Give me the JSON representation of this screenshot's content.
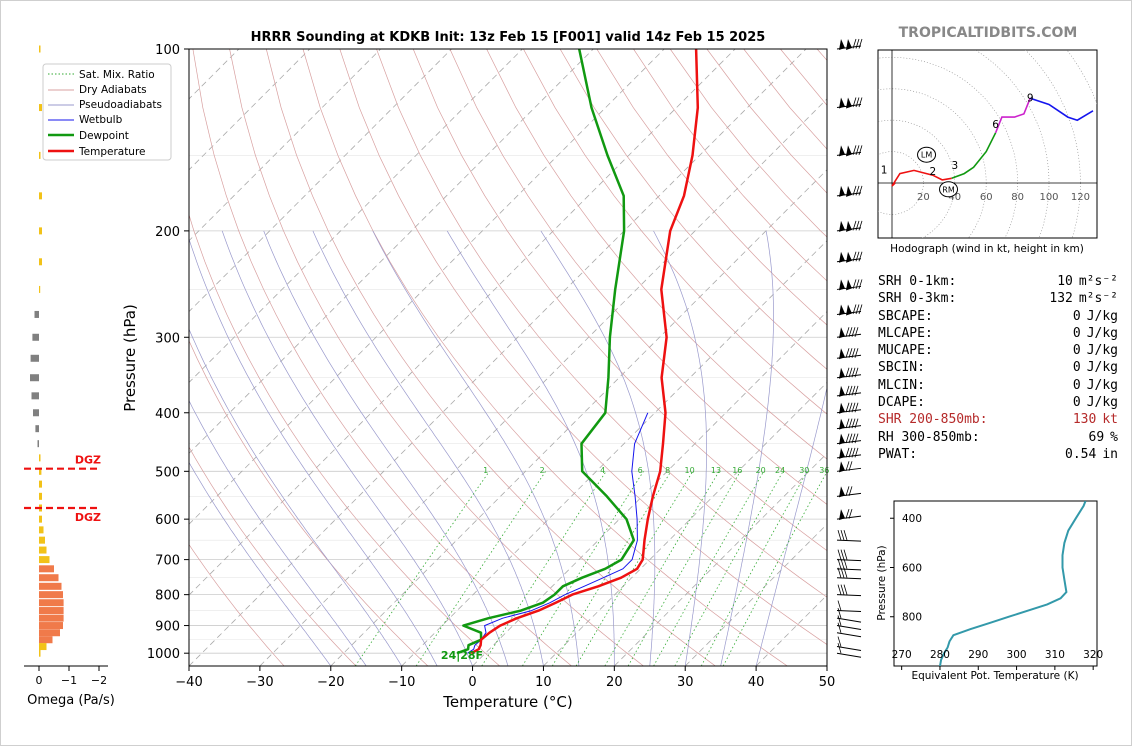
{
  "site": "TROPICALTIDBITS.COM",
  "title": "HRRR Sounding at KDKB Init: 13z Feb 15 [F001] valid 14z Feb 15 2025",
  "colors": {
    "temperature": "#ee1111",
    "dewpoint": "#119911",
    "wetbulb": "#1515ee",
    "dry_adiabat": "#d8a0a0",
    "moist_adiabat": "#9999cc",
    "mixing_ratio": "#33aa33",
    "hodo_0_3": "#ee1111",
    "hodo_3_6": "#119911",
    "hodo_6_9": "#cc22cc",
    "hodo_9_12": "#1515ee",
    "theta_e": "#3399aa",
    "omega_up": "#f2c218",
    "omega_low": "#f07a4a",
    "omega_down": "#808080",
    "dgz": "#ee1111",
    "site_text": "#888888"
  },
  "stats": [
    {
      "label": "SRH 0-1km:",
      "value": "10",
      "unit": "m²s⁻²"
    },
    {
      "label": "SRH 0-3km:",
      "value": "132",
      "unit": "m²s⁻²"
    },
    {
      "label": "SBCAPE:",
      "value": "0",
      "unit": "J/kg"
    },
    {
      "label": "MLCAPE:",
      "value": "0",
      "unit": "J/kg"
    },
    {
      "label": "MUCAPE:",
      "value": "0",
      "unit": "J/kg"
    },
    {
      "label": "SBCIN:",
      "value": "0",
      "unit": "J/kg"
    },
    {
      "label": "MLCIN:",
      "value": "0",
      "unit": "J/kg"
    },
    {
      "label": "DCAPE:",
      "value": "0",
      "unit": "J/kg"
    },
    {
      "label": "SHR 200-850mb:",
      "value": "130",
      "unit": "kt",
      "warn": true
    },
    {
      "label": "RH 300-850mb:",
      "value": "69",
      "unit": "%"
    },
    {
      "label": "PWAT:",
      "value": "0.54",
      "unit": "in"
    }
  ],
  "chart_data": [
    {
      "type": "line",
      "subtype": "skew-t",
      "title": "HRRR Sounding at KDKB Init: 13z Feb 15 [F001] valid 14z Feb 15 2025",
      "xlabel": "Temperature (°C)",
      "ylabel": "Pressure (hPa)",
      "xlim": [
        -40,
        50
      ],
      "ylim": [
        1050,
        100
      ],
      "y_scale": "log",
      "x_ticks": [
        -40,
        -30,
        -20,
        -10,
        0,
        10,
        20,
        30,
        40,
        50
      ],
      "y_ticks": [
        100,
        200,
        300,
        400,
        500,
        600,
        700,
        800,
        900,
        1000
      ],
      "legend": [
        "Sat. Mix. Ratio",
        "Dry Adiabats",
        "Pseudoadiabats",
        "Wetbulb",
        "Dewpoint",
        "Temperature"
      ],
      "legend_position": "top-left",
      "mixing_ratio_labels": [
        "1",
        "2",
        "4",
        "6",
        "8",
        "10",
        "13",
        "16",
        "20",
        "24",
        "30",
        "36"
      ],
      "surface_label": "24|28F",
      "series": [
        {
          "name": "Temperature",
          "points": [
            [
              1000,
              -2.0
            ],
            [
              985,
              -1.5
            ],
            [
              970,
              -1.8
            ],
            [
              950,
              -2.5
            ],
            [
              925,
              -2.3
            ],
            [
              900,
              -1.8
            ],
            [
              875,
              -0.5
            ],
            [
              850,
              1.5
            ],
            [
              825,
              2.8
            ],
            [
              800,
              4.0
            ],
            [
              775,
              6.5
            ],
            [
              750,
              8.5
            ],
            [
              725,
              9.5
            ],
            [
              700,
              9.0
            ],
            [
              650,
              6.5
            ],
            [
              600,
              4.0
            ],
            [
              550,
              1.5
            ],
            [
              500,
              -1.0
            ],
            [
              450,
              -4.5
            ],
            [
              400,
              -8.5
            ],
            [
              350,
              -14.0
            ],
            [
              300,
              -19.0
            ],
            [
              250,
              -26.5
            ],
            [
              200,
              -33.5
            ],
            [
              175,
              -36.5
            ],
            [
              150,
              -41.0
            ],
            [
              125,
              -47.0
            ],
            [
              100,
              -55.5
            ]
          ]
        },
        {
          "name": "Dewpoint",
          "points": [
            [
              1000,
              -4.0
            ],
            [
              985,
              -3.0
            ],
            [
              970,
              -3.5
            ],
            [
              950,
              -2.5
            ],
            [
              925,
              -3.5
            ],
            [
              900,
              -7.0
            ],
            [
              875,
              -4.5
            ],
            [
              850,
              -1.0
            ],
            [
              825,
              1.0
            ],
            [
              800,
              1.5
            ],
            [
              775,
              1.5
            ],
            [
              750,
              3.0
            ],
            [
              725,
              5.0
            ],
            [
              700,
              6.0
            ],
            [
              650,
              5.0
            ],
            [
              600,
              1.0
            ],
            [
              550,
              -5.0
            ],
            [
              500,
              -12.0
            ],
            [
              450,
              -16.0
            ],
            [
              400,
              -17.0
            ],
            [
              350,
              -21.5
            ],
            [
              300,
              -27.0
            ],
            [
              250,
              -33.0
            ],
            [
              200,
              -40.0
            ],
            [
              175,
              -45.0
            ],
            [
              150,
              -53.0
            ],
            [
              125,
              -62.0
            ],
            [
              100,
              -72.0
            ]
          ]
        },
        {
          "name": "Wetbulb",
          "points": [
            [
              1000,
              -2.5
            ],
            [
              985,
              -2.2
            ],
            [
              970,
              -2.6
            ],
            [
              950,
              -2.5
            ],
            [
              925,
              -2.8
            ],
            [
              900,
              -4.0
            ],
            [
              875,
              -2.5
            ],
            [
              850,
              0.5
            ],
            [
              825,
              2.0
            ],
            [
              800,
              3.0
            ],
            [
              775,
              4.5
            ],
            [
              750,
              6.0
            ],
            [
              725,
              7.5
            ],
            [
              700,
              7.5
            ],
            [
              650,
              5.5
            ],
            [
              600,
              2.5
            ],
            [
              550,
              -1.0
            ],
            [
              500,
              -5.0
            ],
            [
              450,
              -8.5
            ],
            [
              400,
              -11.0
            ]
          ]
        }
      ]
    },
    {
      "type": "bar",
      "subtype": "omega-profile",
      "xlabel": "Omega (Pa/s)",
      "xlim": [
        0,
        -2
      ],
      "x_ticks": [
        0,
        -1,
        -2
      ],
      "dgz_label": "DGZ",
      "dgz_layer_hpa": [
        495,
        575
      ],
      "values": [
        [
          1000,
          -0.05
        ],
        [
          975,
          -0.25
        ],
        [
          950,
          -0.45
        ],
        [
          925,
          -0.7
        ],
        [
          900,
          -0.8
        ],
        [
          875,
          -0.82
        ],
        [
          850,
          -0.82
        ],
        [
          825,
          -0.82
        ],
        [
          800,
          -0.8
        ],
        [
          775,
          -0.75
        ],
        [
          750,
          -0.65
        ],
        [
          725,
          -0.5
        ],
        [
          700,
          -0.35
        ],
        [
          675,
          -0.25
        ],
        [
          650,
          -0.2
        ],
        [
          625,
          -0.15
        ],
        [
          600,
          -0.1
        ],
        [
          575,
          -0.1
        ],
        [
          550,
          -0.1
        ],
        [
          525,
          -0.1
        ],
        [
          500,
          -0.08
        ],
        [
          475,
          -0.05
        ],
        [
          450,
          0.05
        ],
        [
          425,
          0.12
        ],
        [
          400,
          0.2
        ],
        [
          375,
          0.25
        ],
        [
          350,
          0.3
        ],
        [
          325,
          0.28
        ],
        [
          300,
          0.22
        ],
        [
          275,
          0.15
        ],
        [
          250,
          -0.02
        ],
        [
          225,
          -0.1
        ],
        [
          200,
          -0.1
        ],
        [
          175,
          -0.1
        ],
        [
          150,
          -0.05
        ],
        [
          125,
          -0.1
        ],
        [
          100,
          -0.05
        ]
      ]
    },
    {
      "type": "line",
      "subtype": "hodograph",
      "xlabel": "Hodograph (wind in kt, height in km)",
      "ring_labels": [
        "20",
        "40",
        "60",
        "80",
        "100",
        "120"
      ],
      "storm_motion_labels": [
        "LM",
        "RM"
      ],
      "height_labels": [
        "1",
        "2",
        "3",
        "6",
        "9"
      ],
      "series": [
        {
          "name": "0-3 km",
          "points": [
            [
              2,
              0
            ],
            [
              0,
              -2
            ],
            [
              5,
              6
            ],
            [
              14,
              8
            ],
            [
              26,
              5
            ],
            [
              32,
              2
            ],
            [
              38,
              3
            ]
          ]
        },
        {
          "name": "3-6 km",
          "points": [
            [
              38,
              3
            ],
            [
              46,
              6
            ],
            [
              52,
              10
            ],
            [
              60,
              20
            ],
            [
              66,
              32
            ]
          ]
        },
        {
          "name": "6-9 km",
          "points": [
            [
              66,
              32
            ],
            [
              70,
              42
            ],
            [
              78,
              42
            ],
            [
              84,
              44
            ],
            [
              88,
              54
            ]
          ]
        },
        {
          "name": "9-12 km",
          "points": [
            [
              88,
              54
            ],
            [
              100,
              50
            ],
            [
              112,
              42
            ],
            [
              118,
              40
            ],
            [
              128,
              46
            ]
          ]
        }
      ],
      "storm_motion": {
        "LM": [
          22,
          18
        ],
        "RM": [
          36,
          -4
        ]
      }
    },
    {
      "type": "line",
      "subtype": "theta-e-profile",
      "xlabel": "Equivalent Pot. Temperature (K)",
      "ylabel": "Pressure (hPa)",
      "xlim": [
        268,
        321
      ],
      "ylim": [
        1000,
        330
      ],
      "x_ticks": [
        270,
        280,
        290,
        300,
        310,
        320
      ],
      "y_ticks": [
        400,
        600,
        800
      ],
      "series": [
        {
          "name": "Theta-E",
          "points": [
            [
              1000,
              280.0
            ],
            [
              975,
              280.3
            ],
            [
              950,
              281.0
            ],
            [
              925,
              282.0
            ],
            [
              900,
              282.5
            ],
            [
              875,
              283.5
            ],
            [
              850,
              288.0
            ],
            [
              825,
              293.0
            ],
            [
              800,
              298.0
            ],
            [
              775,
              303.0
            ],
            [
              750,
              308.0
            ],
            [
              725,
              311.5
            ],
            [
              700,
              313.0
            ],
            [
              650,
              312.5
            ],
            [
              600,
              312.0
            ],
            [
              550,
              312.0
            ],
            [
              500,
              312.5
            ],
            [
              450,
              313.5
            ],
            [
              400,
              315.5
            ],
            [
              350,
              317.5
            ],
            [
              330,
              318.0
            ]
          ]
        }
      ]
    }
  ]
}
